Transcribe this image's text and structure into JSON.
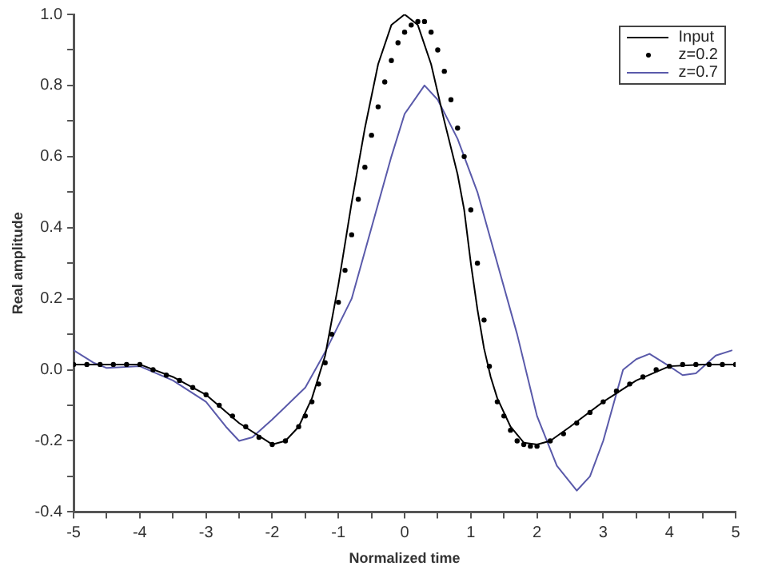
{
  "chart_data": {
    "type": "line",
    "xlabel": "Normalized time",
    "ylabel": "Real amplitude",
    "xlim": [
      -5,
      5
    ],
    "xticks": [
      -5,
      {
        "value": -4.5,
        "label": null
      },
      -4,
      {
        "value": -3.5,
        "label": null
      },
      -3,
      {
        "value": -2.5,
        "label": null
      },
      -2,
      {
        "value": -1.5,
        "label": null
      },
      -1,
      {
        "value": -0.5,
        "label": null
      },
      0,
      {
        "value": 0.5,
        "label": null
      },
      1,
      {
        "value": 1.5,
        "label": null
      },
      2,
      {
        "value": 2.5,
        "label": null
      },
      3,
      {
        "value": 3.5,
        "label": null
      },
      4,
      {
        "value": 4.5,
        "label": null
      },
      5
    ],
    "ylim": [
      -0.4,
      1.0
    ],
    "yticks": [
      {
        "value": -0.4,
        "label": "-0.4"
      },
      {
        "value": -0.3,
        "label": null
      },
      {
        "value": -0.2,
        "label": "-0.2"
      },
      {
        "value": -0.1,
        "label": null
      },
      {
        "value": 0,
        "label": "0.0"
      },
      {
        "value": 0.1,
        "label": null
      },
      {
        "value": 0.2,
        "label": "0.2"
      },
      {
        "value": 0.3,
        "label": null
      },
      {
        "value": 0.4,
        "label": "0.4"
      },
      {
        "value": 0.5,
        "label": null
      },
      {
        "value": 0.6,
        "label": "0.6"
      },
      {
        "value": 0.7,
        "label": null
      },
      {
        "value": 0.8,
        "label": "0.8"
      },
      {
        "value": 0.9,
        "label": null
      },
      {
        "value": 1.0,
        "label": "1.0"
      }
    ],
    "grid": false,
    "legend": "top right",
    "series": [
      {
        "name": "Input",
        "marker": "none",
        "color": "#000000",
        "x": [
          -5,
          -4.5,
          -4,
          -3.5,
          -3,
          -2.5,
          -2,
          -1.8,
          -1.6,
          -1.4,
          -1.2,
          -1,
          -0.8,
          -0.6,
          -0.4,
          -0.2,
          0,
          0.2,
          0.4,
          0.6,
          0.8,
          0.9,
          1,
          1.1,
          1.2,
          1.3,
          1.4,
          1.6,
          1.8,
          2,
          2.2,
          2.5,
          3,
          3.5,
          4,
          4.5,
          5
        ],
        "values": [
          0.015,
          0.015,
          0.015,
          -0.02,
          -0.07,
          -0.15,
          -0.21,
          -0.2,
          -0.16,
          -0.08,
          0.04,
          0.24,
          0.47,
          0.68,
          0.86,
          0.97,
          1.0,
          0.97,
          0.86,
          0.7,
          0.55,
          0.45,
          0.3,
          0.17,
          0.06,
          -0.02,
          -0.08,
          -0.16,
          -0.205,
          -0.21,
          -0.2,
          -0.16,
          -0.09,
          -0.03,
          0.01,
          0.015,
          0.015
        ]
      },
      {
        "name": "z=0.2",
        "type": "scatter",
        "marker": "circle",
        "color": "#000000",
        "x": [
          -5,
          -4.8,
          -4.6,
          -4.4,
          -4.2,
          -4,
          -3.8,
          -3.6,
          -3.4,
          -3.2,
          -3,
          -2.8,
          -2.6,
          -2.4,
          -2.2,
          -2,
          -1.8,
          -1.6,
          -1.5,
          -1.4,
          -1.3,
          -1.2,
          -1.1,
          -1,
          -0.9,
          -0.8,
          -0.7,
          -0.6,
          -0.5,
          -0.4,
          -0.3,
          -0.2,
          -0.1,
          0,
          0.1,
          0.2,
          0.3,
          0.4,
          0.5,
          0.6,
          0.7,
          0.8,
          0.9,
          1,
          1.1,
          1.2,
          1.28,
          1.4,
          1.5,
          1.6,
          1.7,
          1.8,
          1.9,
          2,
          2.2,
          2.4,
          2.6,
          2.8,
          3,
          3.2,
          3.4,
          3.6,
          3.8,
          4,
          4.2,
          4.4,
          4.6,
          4.8,
          5
        ],
        "values": [
          0.015,
          0.015,
          0.015,
          0.015,
          0.015,
          0.015,
          0.0,
          -0.015,
          -0.03,
          -0.05,
          -0.07,
          -0.1,
          -0.13,
          -0.16,
          -0.19,
          -0.21,
          -0.2,
          -0.16,
          -0.13,
          -0.09,
          -0.04,
          0.02,
          0.1,
          0.19,
          0.28,
          0.38,
          0.48,
          0.57,
          0.66,
          0.74,
          0.81,
          0.87,
          0.92,
          0.95,
          0.97,
          0.98,
          0.98,
          0.95,
          0.9,
          0.84,
          0.76,
          0.68,
          0.6,
          0.45,
          0.3,
          0.14,
          0.01,
          -0.09,
          -0.13,
          -0.17,
          -0.2,
          -0.21,
          -0.215,
          -0.215,
          -0.2,
          -0.18,
          -0.15,
          -0.12,
          -0.09,
          -0.06,
          -0.04,
          -0.02,
          0.0,
          0.01,
          0.015,
          0.015,
          0.015,
          0.015,
          0.015
        ]
      },
      {
        "name": "z=0.7",
        "marker": "none",
        "color": "#5a5aaa",
        "x": [
          -5,
          -4.7,
          -4.5,
          -4,
          -3.5,
          -3,
          -2.7,
          -2.5,
          -2.3,
          -2,
          -1.5,
          -1.2,
          -0.8,
          -0.5,
          -0.2,
          0,
          0.3,
          0.5,
          0.8,
          1.1,
          1.4,
          1.7,
          2,
          2.3,
          2.6,
          2.8,
          3,
          3.3,
          3.5,
          3.7,
          4,
          4.2,
          4.4,
          4.7,
          4.95
        ],
        "values": [
          0.055,
          0.02,
          0.005,
          0.01,
          -0.03,
          -0.09,
          -0.16,
          -0.2,
          -0.19,
          -0.14,
          -0.05,
          0.05,
          0.2,
          0.4,
          0.6,
          0.72,
          0.8,
          0.76,
          0.65,
          0.5,
          0.3,
          0.1,
          -0.13,
          -0.27,
          -0.34,
          -0.3,
          -0.2,
          0.0,
          0.03,
          0.045,
          0.01,
          -0.015,
          -0.01,
          0.04,
          0.055
        ]
      }
    ]
  }
}
